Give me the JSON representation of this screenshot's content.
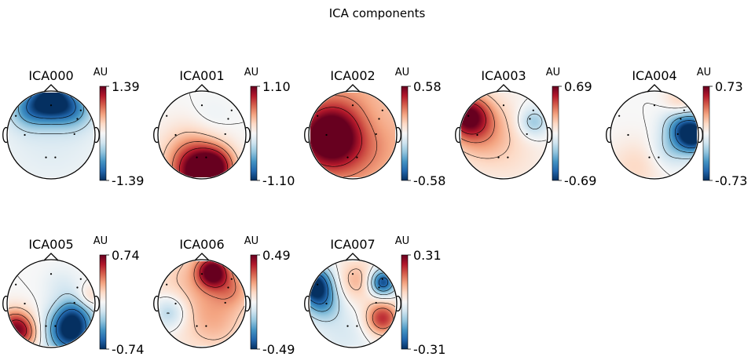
{
  "figure": {
    "title": "ICA components"
  },
  "chart_data": {
    "type": "heatmap",
    "title": "ICA components",
    "colormap": "RdBu_r",
    "colorbar_unit": "AU",
    "sensor_count": 8,
    "components": [
      {
        "name": "ICA000",
        "vmax": "1.39",
        "vmin": "-1.39",
        "range": 1.39,
        "blobs": [
          {
            "at": [
              0.0,
              0.82
            ],
            "sigma": 0.35,
            "amp": -1.0
          },
          {
            "at": [
              -0.55,
              0.6
            ],
            "sigma": 0.32,
            "amp": -0.45
          },
          {
            "at": [
              0.55,
              0.6
            ],
            "sigma": 0.32,
            "amp": -0.45
          },
          {
            "at": [
              0.0,
              0.0
            ],
            "sigma": 0.9,
            "amp": -0.13
          }
        ]
      },
      {
        "name": "ICA001",
        "vmax": "1.10",
        "vmin": "-1.10",
        "range": 1.1,
        "blobs": [
          {
            "at": [
              0.0,
              -0.95
            ],
            "sigma": 0.45,
            "amp": 1.05
          },
          {
            "at": [
              0.35,
              -0.7
            ],
            "sigma": 0.3,
            "amp": 0.45
          },
          {
            "at": [
              -0.3,
              -0.45
            ],
            "sigma": 0.5,
            "amp": 0.35
          },
          {
            "at": [
              0.2,
              0.35
            ],
            "sigma": 0.35,
            "amp": -0.08
          }
        ]
      },
      {
        "name": "ICA002",
        "vmax": "0.58",
        "vmin": "-0.58",
        "range": 0.58,
        "blobs": [
          {
            "at": [
              -0.55,
              -0.05
            ],
            "sigma": 0.5,
            "amp": 0.88
          },
          {
            "at": [
              0.0,
              0.0
            ],
            "sigma": 1.2,
            "amp": 0.55
          },
          {
            "at": [
              0.45,
              0.35
            ],
            "sigma": 0.45,
            "amp": -0.12
          }
        ]
      },
      {
        "name": "ICA003",
        "vmax": "0.69",
        "vmin": "-0.69",
        "range": 0.69,
        "blobs": [
          {
            "at": [
              -0.85,
              0.45
            ],
            "sigma": 0.35,
            "amp": 0.85
          },
          {
            "at": [
              -0.5,
              0.1
            ],
            "sigma": 0.55,
            "amp": 0.4
          },
          {
            "at": [
              0.7,
              0.3
            ],
            "sigma": 0.25,
            "amp": -0.4
          },
          {
            "at": [
              0.3,
              -0.6
            ],
            "sigma": 0.6,
            "amp": 0.1
          }
        ]
      },
      {
        "name": "ICA004",
        "vmax": "0.73",
        "vmin": "-0.73",
        "range": 0.73,
        "blobs": [
          {
            "at": [
              0.92,
              0.0
            ],
            "sigma": 0.3,
            "amp": -1.15
          },
          {
            "at": [
              0.55,
              0.25
            ],
            "sigma": 0.28,
            "amp": -0.35
          },
          {
            "at": [
              0.35,
              -0.35
            ],
            "sigma": 0.3,
            "amp": -0.25
          },
          {
            "at": [
              0.6,
              0.8
            ],
            "sigma": 0.25,
            "amp": 0.25
          },
          {
            "at": [
              -0.45,
              -0.75
            ],
            "sigma": 0.45,
            "amp": 0.2
          }
        ]
      },
      {
        "name": "ICA005",
        "vmax": "0.74",
        "vmin": "-0.74",
        "range": 0.74,
        "blobs": [
          {
            "at": [
              0.45,
              -0.65
            ],
            "sigma": 0.38,
            "amp": -1.05
          },
          {
            "at": [
              0.55,
              -0.2
            ],
            "sigma": 0.3,
            "amp": -0.35
          },
          {
            "at": [
              -0.85,
              -0.55
            ],
            "sigma": 0.3,
            "amp": 0.8
          },
          {
            "at": [
              -0.6,
              -0.75
            ],
            "sigma": 0.25,
            "amp": 0.3
          },
          {
            "at": [
              0.25,
              0.45
            ],
            "sigma": 0.3,
            "amp": -0.12
          },
          {
            "at": [
              0.9,
              0.15
            ],
            "sigma": 0.2,
            "amp": 0.25
          }
        ]
      },
      {
        "name": "ICA006",
        "vmax": "0.49",
        "vmin": "-0.49",
        "range": 0.49,
        "blobs": [
          {
            "at": [
              0.25,
              0.75
            ],
            "sigma": 0.25,
            "amp": 0.9
          },
          {
            "at": [
              0.0,
              0.3
            ],
            "sigma": 0.85,
            "amp": 0.35
          },
          {
            "at": [
              -0.75,
              -0.2
            ],
            "sigma": 0.3,
            "amp": -0.45
          },
          {
            "at": [
              0.35,
              -0.55
            ],
            "sigma": 0.45,
            "amp": 0.15
          },
          {
            "at": [
              0.7,
              0.35
            ],
            "sigma": 0.3,
            "amp": 0.25
          }
        ]
      },
      {
        "name": "ICA007",
        "vmax": "0.31",
        "vmin": "-0.31",
        "range": 0.31,
        "blobs": [
          {
            "at": [
              -0.9,
              0.45
            ],
            "sigma": 0.3,
            "amp": -1.05
          },
          {
            "at": [
              -0.7,
              0.0
            ],
            "sigma": 0.3,
            "amp": -0.45
          },
          {
            "at": [
              0.7,
              0.5
            ],
            "sigma": 0.22,
            "amp": -0.95
          },
          {
            "at": [
              0.7,
              -0.35
            ],
            "sigma": 0.28,
            "amp": 0.75
          },
          {
            "at": [
              0.1,
              0.55
            ],
            "sigma": 0.35,
            "amp": 0.35
          },
          {
            "at": [
              -0.2,
              -0.7
            ],
            "sigma": 0.45,
            "amp": -0.15
          }
        ]
      }
    ]
  }
}
